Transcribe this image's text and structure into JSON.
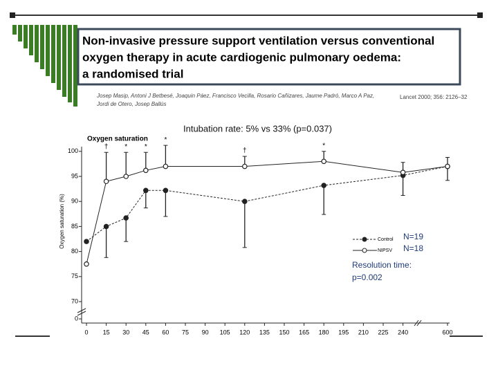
{
  "header": {
    "title_lines": [
      "Non-invasive pressure support ventilation versus conventional",
      "oxygen therapy in acute cardiogenic pulmonary oedema:",
      "a randomised trial"
    ],
    "authors": [
      "Josep Masip, Antoni J Betbesé, Joaquin Páez, Francisco Vecilla, Rosario Cañizares, Jaume Padró, Marco A Paz,",
      "Jordi de Otero, Josep Ballús"
    ],
    "citation": "Lancet 2000; 356: 2126–32"
  },
  "chart_data": {
    "type": "line",
    "title": "Oxygen saturation",
    "ylabel": "Oxygen saturation (%)",
    "x": [
      0,
      15,
      30,
      45,
      60,
      120,
      180,
      240,
      600
    ],
    "series": [
      {
        "name": "Control",
        "color": "#222222",
        "marker": "filled",
        "dashed": true,
        "error_direction": "down",
        "values": [
          82,
          85,
          86.7,
          92.2,
          92.2,
          90,
          93.2,
          95.2,
          97
        ],
        "errors": [
          0.3,
          6.2,
          4.7,
          3.5,
          5.2,
          9.2,
          5.8,
          4,
          2.8
        ]
      },
      {
        "name": "NIPSV",
        "color": "#222222",
        "marker": "open",
        "dashed": false,
        "error_direction": "up",
        "values": [
          77.5,
          94,
          95,
          96.2,
          97,
          97,
          98,
          95.8,
          97
        ],
        "errors": [
          0,
          5.8,
          4.8,
          3.6,
          4.2,
          2,
          2,
          2,
          1.8
        ]
      }
    ],
    "xlim": [
      0,
      600
    ],
    "xticks": [
      0,
      15,
      30,
      45,
      60,
      75,
      90,
      105,
      120,
      135,
      150,
      165,
      180,
      195,
      210,
      225,
      240,
      600
    ],
    "ylim": [
      0,
      100
    ],
    "yticks": [
      0,
      70,
      75,
      80,
      85,
      90,
      95,
      100
    ],
    "annotations": [
      {
        "x": 15,
        "text": "†"
      },
      {
        "x": 30,
        "text": "*"
      },
      {
        "x": 45,
        "text": "*"
      },
      {
        "x": 60,
        "text": "*"
      },
      {
        "x": 120,
        "text": "†"
      },
      {
        "x": 180,
        "text": "*"
      }
    ],
    "notes": [
      "Intubation rate: 5% vs 33% (p=0.037)",
      "N=19",
      "N=18",
      "Resolution time:",
      "p=0.002"
    ]
  }
}
